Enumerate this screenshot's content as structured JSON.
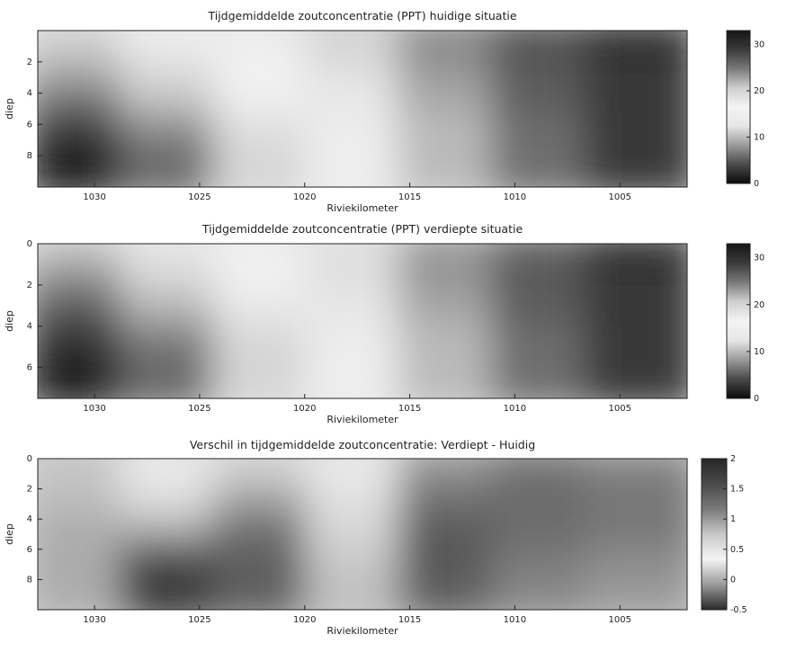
{
  "chart_data": [
    {
      "type": "heatmap",
      "title": "Tijdgemiddelde zoutconcentratie (PPT) huidige situatie",
      "xlabel": "Riviekilometer",
      "ylabel": "diep",
      "x_ticks": [
        1030,
        1025,
        1020,
        1015,
        1010,
        1005
      ],
      "y_ticks": [
        2,
        4,
        6,
        8
      ],
      "xlim": [
        1032.7,
        1001.8
      ],
      "ylim": [
        10,
        0
      ],
      "colorbar": {
        "ticks": [
          "0",
          "10",
          "20",
          "30"
        ],
        "range": [
          0,
          33
        ]
      },
      "colormap": [
        "#0a0a0a",
        "#4a4a4a",
        "#9a9a9a",
        "#e6e6e6",
        "#f4f4f4",
        "#cfcfcf",
        "#7a7a7a",
        "#3a3a3a",
        "#161616"
      ],
      "x": [
        1032,
        1027,
        1022,
        1017,
        1012,
        1007,
        1002
      ],
      "y": [
        0.5,
        2.5,
        4.5,
        6.5,
        8.5
      ],
      "values": [
        [
          20,
          17,
          14,
          11,
          7,
          4,
          2
        ],
        [
          22,
          19,
          16,
          12,
          8,
          5,
          3
        ],
        [
          25,
          21,
          17,
          13,
          9,
          5,
          3
        ],
        [
          29,
          24,
          19,
          14,
          10,
          6,
          3
        ],
        [
          32,
          26,
          20,
          15,
          10,
          6,
          3
        ]
      ]
    },
    {
      "type": "heatmap",
      "title": "Tijdgemiddelde zoutconcentratie (PPT) verdiepte situatie",
      "xlabel": "Riviekilometer",
      "ylabel": "diep",
      "x_ticks": [
        1030,
        1025,
        1020,
        1015,
        1010,
        1005
      ],
      "y_ticks": [
        0,
        2,
        4,
        6
      ],
      "xlim": [
        1032.7,
        1001.8
      ],
      "ylim": [
        7.5,
        0
      ],
      "colorbar": {
        "ticks": [
          "0",
          "10",
          "20",
          "30"
        ],
        "range": [
          0,
          33
        ]
      },
      "colormap": [
        "#0a0a0a",
        "#4a4a4a",
        "#9a9a9a",
        "#e6e6e6",
        "#f4f4f4",
        "#cfcfcf",
        "#7a7a7a",
        "#3a3a3a",
        "#161616"
      ],
      "x": [
        1032,
        1027,
        1022,
        1017,
        1012,
        1007,
        1002
      ],
      "y": [
        0.5,
        2.5,
        4.5,
        6.5,
        7.0
      ],
      "values": [
        [
          21,
          18,
          15,
          12,
          8,
          5,
          2
        ],
        [
          24,
          20,
          16,
          12,
          8,
          5,
          3
        ],
        [
          27,
          22,
          18,
          13,
          9,
          5,
          3
        ],
        [
          30,
          25,
          20,
          14,
          10,
          6,
          3
        ],
        [
          32,
          26,
          20,
          15,
          10,
          6,
          3
        ]
      ]
    },
    {
      "type": "heatmap",
      "title": "Verschil in tijdgemiddelde zoutconcentratie: Verdiept - Huidig",
      "xlabel": "Riviekilometer",
      "ylabel": "diep",
      "x_ticks": [
        1030,
        1025,
        1020,
        1015,
        1010,
        1005
      ],
      "y_ticks": [
        0,
        2,
        4,
        6,
        8
      ],
      "xlim": [
        1032.7,
        1001.8
      ],
      "ylim": [
        10,
        0
      ],
      "colorbar": {
        "ticks": [
          "-0.5",
          "0",
          "0.5",
          "1",
          "1.5",
          "2"
        ],
        "range": [
          -0.5,
          2
        ]
      },
      "colormap": [
        "#2a2a2a",
        "#9a9a9a",
        "#f4f4f4",
        "#c8c8c8",
        "#7a7a7a",
        "#4a4a4a",
        "#262626"
      ],
      "x": [
        1032,
        1027,
        1022,
        1017,
        1012,
        1007,
        1002
      ],
      "y": [
        0.5,
        2.5,
        4.5,
        6.5,
        8.5
      ],
      "values": [
        [
          0.1,
          0.3,
          0.6,
          0.4,
          1.0,
          1.2,
          1.1
        ],
        [
          0.1,
          0.5,
          0.9,
          0.5,
          1.2,
          1.3,
          1.2
        ],
        [
          0.0,
          0.8,
          1.2,
          0.6,
          1.4,
          1.3,
          1.2
        ],
        [
          0.0,
          1.5,
          1.4,
          0.7,
          1.5,
          1.2,
          1.1
        ],
        [
          0.0,
          1.8,
          1.4,
          0.8,
          1.4,
          1.1,
          1.0
        ]
      ]
    }
  ]
}
